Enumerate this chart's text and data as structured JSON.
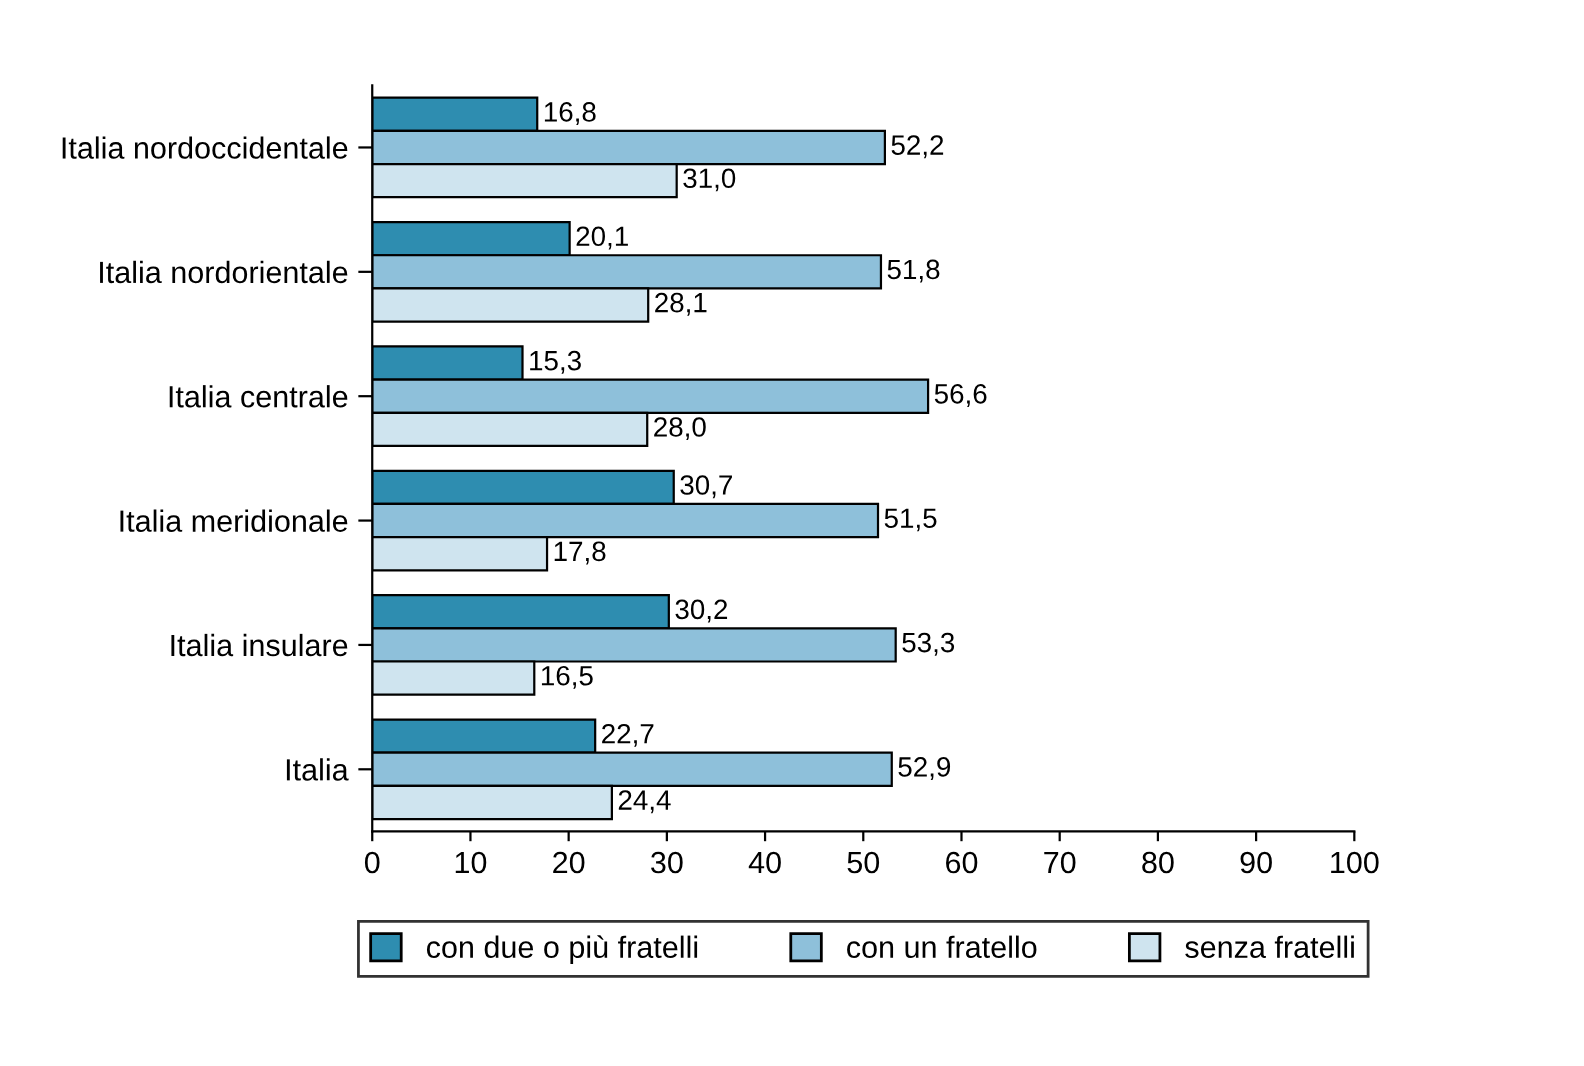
{
  "chart_data": {
    "type": "bar",
    "orientation": "horizontal",
    "categories": [
      "Italia nordoccidentale",
      "Italia nordorientale",
      "Italia centrale",
      "Italia meridionale",
      "Italia insulare",
      "Italia"
    ],
    "series": [
      {
        "name": "con due o più fratelli",
        "color": "#2e8db0",
        "values": [
          16.8,
          20.1,
          15.3,
          30.7,
          30.2,
          22.7
        ],
        "value_labels": [
          "16,8",
          "20,1",
          "15,3",
          "30,7",
          "30,2",
          "22,7"
        ]
      },
      {
        "name": "con un fratello",
        "color": "#8ec0da",
        "values": [
          52.2,
          51.8,
          56.6,
          51.5,
          53.3,
          52.9
        ],
        "value_labels": [
          "52,2",
          "51,8",
          "56,6",
          "51,5",
          "53,3",
          "52,9"
        ]
      },
      {
        "name": "senza fratelli",
        "color": "#cfe4ef",
        "values": [
          31.0,
          28.1,
          28.0,
          17.8,
          16.5,
          24.4
        ],
        "value_labels": [
          "31,0",
          "28,1",
          "28,0",
          "17,8",
          "16,5",
          "24,4"
        ]
      }
    ],
    "xlim": [
      0,
      100
    ],
    "xticks": [
      0,
      10,
      20,
      30,
      40,
      50,
      60,
      70,
      80,
      90,
      100
    ],
    "grid": false,
    "legend": "bottom"
  }
}
